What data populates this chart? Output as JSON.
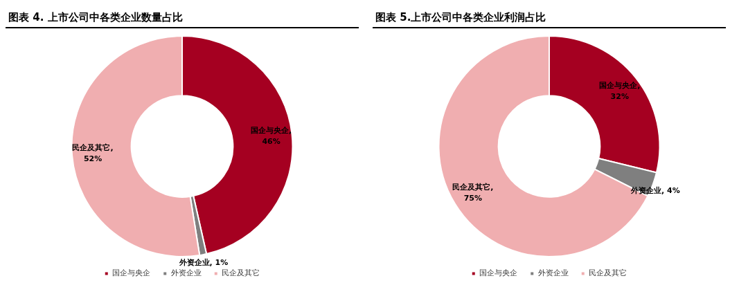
{
  "chart_data": [
    {
      "type": "donut",
      "title": "图表 4. 上市公司中各类企业数量占比",
      "categories": [
        "国企与央企",
        "外资企业",
        "民企及其它"
      ],
      "values": [
        46,
        1,
        52
      ],
      "colors": [
        "#a50021",
        "#7f7f7f",
        "#f0aeb0"
      ],
      "value_labels": [
        "国企与央企,\n46%",
        "外资企业, 1%",
        "民企及其它,\n52%"
      ],
      "legend": "bottom"
    },
    {
      "type": "donut",
      "title": "图表 5.上市公司中各类企业利润占比",
      "categories": [
        "国企与央企",
        "外资企业",
        "民企及其它"
      ],
      "values": [
        32,
        4,
        75
      ],
      "colors": [
        "#a50021",
        "#7f7f7f",
        "#f0aeb0"
      ],
      "value_labels": [
        "国企与央企,\n32%",
        "外资企业, 4%",
        "民企及其它,\n75%"
      ],
      "legend": "bottom"
    }
  ]
}
